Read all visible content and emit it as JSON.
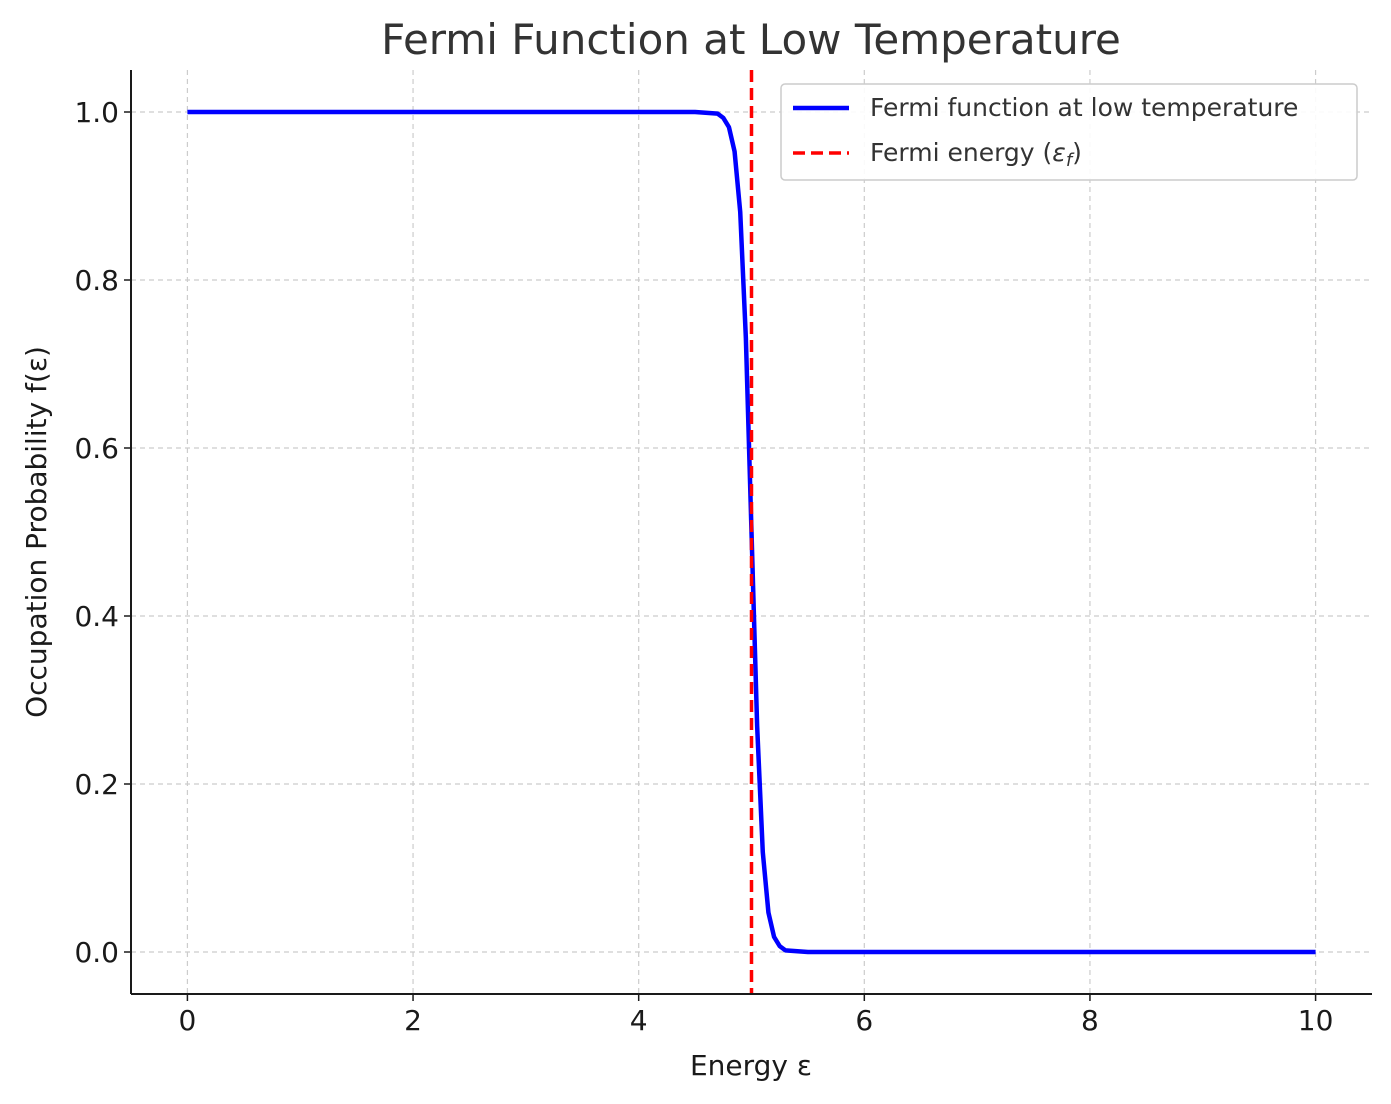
{
  "chart_data": {
    "type": "line",
    "title": "Fermi Function at Low Temperature",
    "xlabel": "Energy ε",
    "ylabel": "Occupation Probability f(ε)",
    "xlim": [
      -0.5,
      10.5
    ],
    "ylim": [
      -0.05,
      1.05
    ],
    "xticks": [
      0,
      2,
      4,
      6,
      8,
      10
    ],
    "xtick_labels": [
      "0",
      "2",
      "4",
      "6",
      "8",
      "10"
    ],
    "yticks": [
      0.0,
      0.2,
      0.4,
      0.6,
      0.8,
      1.0
    ],
    "ytick_labels": [
      "0.0",
      "0.2",
      "0.4",
      "0.6",
      "0.8",
      "1.0"
    ],
    "grid": true,
    "legend_position": "top-right",
    "series": [
      {
        "name": "Fermi function at low temperature",
        "color": "#0000ff",
        "style": "solid",
        "x": [
          0.0,
          1.0,
          2.0,
          3.0,
          4.0,
          4.5,
          4.7,
          4.75,
          4.8,
          4.85,
          4.9,
          4.95,
          5.0,
          5.05,
          5.1,
          5.15,
          5.2,
          5.25,
          5.3,
          5.5,
          6.0,
          7.0,
          8.0,
          9.0,
          10.0
        ],
        "y": [
          1.0,
          1.0,
          1.0,
          1.0,
          1.0,
          1.0,
          0.998,
          0.993,
          0.982,
          0.953,
          0.881,
          0.731,
          0.5,
          0.269,
          0.119,
          0.047,
          0.018,
          0.007,
          0.002,
          0.0,
          0.0,
          0.0,
          0.0,
          0.0,
          0.0
        ]
      },
      {
        "name": "Fermi energy (ε_f)",
        "legend_label_main": "Fermi energy (",
        "legend_label_symbol": "ε",
        "legend_label_sub": "f",
        "legend_label_end": ")",
        "color": "#ff0000",
        "style": "dashed",
        "vline_x": 5.0
      }
    ]
  }
}
